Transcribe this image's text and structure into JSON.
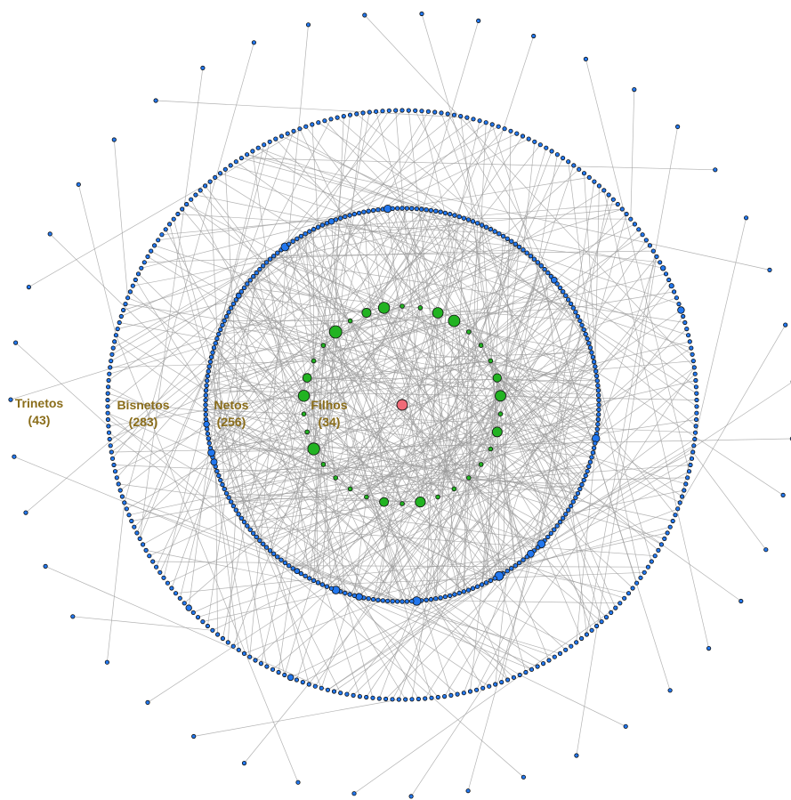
{
  "rings": [
    {
      "id": "filhos",
      "name": "Filhos",
      "count": "(34)",
      "node_count": 34
    },
    {
      "id": "netos",
      "name": "Netos",
      "count": "(256)",
      "node_count": 256
    },
    {
      "id": "bisnetos",
      "name": "Bisnetos",
      "count": "(283)",
      "node_count": 283
    },
    {
      "id": "trinetos",
      "name": "Trinetos",
      "count": "(43)",
      "node_count": 43
    }
  ],
  "colors": {
    "root": "#f06b78",
    "filhos": "#22b322",
    "netos": "#2277ee",
    "bisnetos": "#2277ee",
    "trinetos": "#2277ee",
    "edge": "#9a9a9a",
    "label": "#8a6d1a",
    "node_stroke": "#111111"
  }
}
